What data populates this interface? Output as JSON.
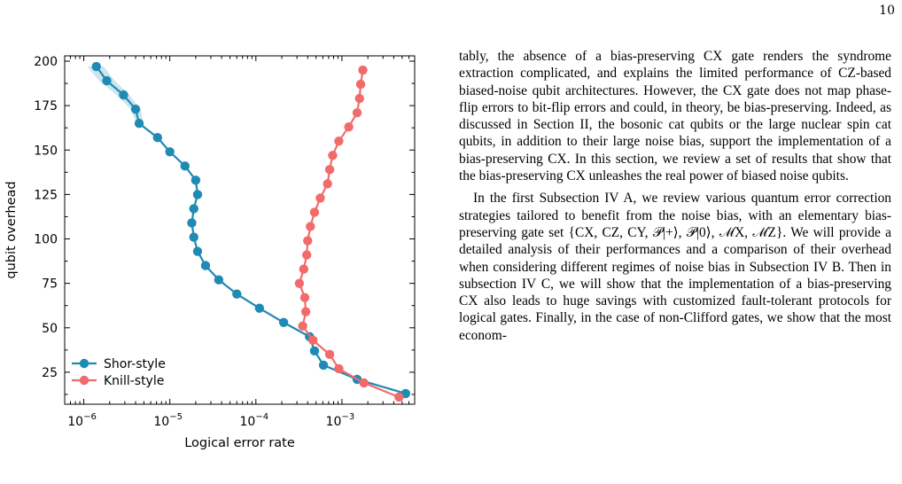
{
  "page_number": "10",
  "figure": {
    "xlabel": "Logical error rate",
    "ylabel": "qubit overhead",
    "x_tick_labels": [
      {
        "value": 1e-06,
        "label": "10",
        "exp": "−6"
      },
      {
        "value": 1e-05,
        "label": "10",
        "exp": "−5"
      },
      {
        "value": 0.0001,
        "label": "10",
        "exp": "−4"
      },
      {
        "value": 0.001,
        "label": "10",
        "exp": "−3"
      }
    ],
    "y_tick_labels": [
      "25",
      "50",
      "75",
      "100",
      "125",
      "150",
      "175",
      "200"
    ],
    "legend": [
      "Shor-style",
      "Knill-style"
    ]
  },
  "chart_data": {
    "type": "line",
    "xscale": "log",
    "xlim": [
      6e-07,
      0.007
    ],
    "ylim": [
      7,
      203
    ],
    "xlabel": "Logical error rate",
    "ylabel": "qubit overhead",
    "grid": false,
    "legend_position": "lower-left",
    "series": [
      {
        "name": "Shor-style",
        "color": "#1f8ab4",
        "points": [
          [
            1.4e-06,
            197
          ],
          [
            1.85e-06,
            189
          ],
          [
            2.9e-06,
            181
          ],
          [
            4e-06,
            173
          ],
          [
            4.4e-06,
            165
          ],
          [
            7.2e-06,
            157
          ],
          [
            1e-05,
            149
          ],
          [
            1.5e-05,
            141
          ],
          [
            2e-05,
            133
          ],
          [
            2.1e-05,
            125
          ],
          [
            1.9e-05,
            117
          ],
          [
            1.8e-05,
            109
          ],
          [
            1.9e-05,
            101
          ],
          [
            2.1e-05,
            93
          ],
          [
            2.6e-05,
            85
          ],
          [
            3.7e-05,
            77
          ],
          [
            6e-05,
            69
          ],
          [
            0.00011,
            61
          ],
          [
            0.00021,
            53
          ],
          [
            0.00042,
            45
          ],
          [
            0.00048,
            37
          ],
          [
            0.00061,
            29
          ],
          [
            0.0015,
            21
          ],
          [
            0.0055,
            13
          ]
        ],
        "band_upper_x": [
          1.1e-06,
          1.5e-06,
          2.4e-06,
          3.5e-06,
          4.1e-06
        ],
        "band_lower_x": [
          1.7e-06,
          2.3e-06,
          3.4e-06,
          4.6e-06,
          4.9e-06
        ],
        "band_y": [
          197,
          189,
          181,
          173,
          165
        ]
      },
      {
        "name": "Knill-style",
        "color": "#f26b6b",
        "points": [
          [
            0.00175,
            195
          ],
          [
            0.00165,
            187
          ],
          [
            0.0016,
            179
          ],
          [
            0.0015,
            171
          ],
          [
            0.0012,
            163
          ],
          [
            0.00092,
            155
          ],
          [
            0.00078,
            147
          ],
          [
            0.00072,
            139
          ],
          [
            0.00068,
            131
          ],
          [
            0.00056,
            123
          ],
          [
            0.00048,
            115
          ],
          [
            0.00043,
            107
          ],
          [
            0.0004,
            99
          ],
          [
            0.00039,
            91
          ],
          [
            0.00036,
            83
          ],
          [
            0.00032,
            75
          ],
          [
            0.00037,
            67
          ],
          [
            0.00038,
            59
          ],
          [
            0.00035,
            51
          ],
          [
            0.00046,
            43
          ],
          [
            0.00072,
            35
          ],
          [
            0.00092,
            27
          ],
          [
            0.0018,
            19
          ],
          [
            0.0046,
            11
          ]
        ]
      }
    ]
  },
  "text_column": {
    "paragraph1": "tably, the absence of a bias-preserving CX gate renders the syndrome extraction complicated, and explains the limited performance of CZ-based biased-noise qubit architectures. However, the CX gate does not map phase-flip errors to bit-flip errors and could, in theory, be bias-preserving. Indeed, as discussed in Section II, the bosonic cat qubits or the large nuclear spin cat qubits, in addition to their large noise bias, support the implementation of a bias-preserving CX. In this section, we review a set of results that show that the bias-preserving CX unleashes the real power of biased noise qubits.",
    "paragraph2": "In the first Subsection IV A, we review various quantum error correction strategies tailored to benefit from the noise bias, with an elementary bias-preserving gate set {CX, CZ, CY, 𝒫|+⟩, 𝒫|0⟩, ℳX, ℳZ}. We will provide a detailed analysis of their performances and a comparison of their overhead when considering different regimes of noise bias in Subsection IV B. Then in subsection IV C, we will show that the implementation of a bias-preserving CX also leads to huge savings with customized fault-tolerant protocols for logical gates. Finally, in the case of non-Clifford gates, we show that the most econom-"
  }
}
